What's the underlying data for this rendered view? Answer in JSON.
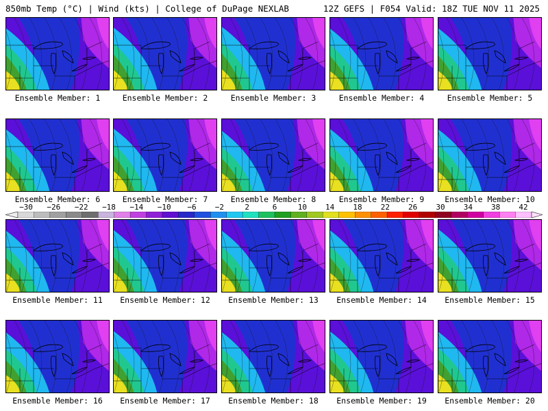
{
  "header": {
    "left": "850mb Temp (°C) | Wind (kts) | College of DuPage NEXLAB",
    "right": "12Z GEFS | F054 Valid: 18Z TUE NOV 11 2025"
  },
  "panels": [
    {
      "label": "Ensemble Member: 1",
      "warm": 0.55
    },
    {
      "label": "Ensemble Member: 2",
      "warm": 0.65
    },
    {
      "label": "Ensemble Member: 3",
      "warm": 0.75
    },
    {
      "label": "Ensemble Member: 4",
      "warm": 0.5
    },
    {
      "label": "Ensemble Member: 5",
      "warm": 0.55
    },
    {
      "label": "Ensemble Member: 6",
      "warm": 0.6
    },
    {
      "label": "Ensemble Member: 7",
      "warm": 0.7
    },
    {
      "label": "Ensemble Member: 8",
      "warm": 0.4
    },
    {
      "label": "Ensemble Member: 9",
      "warm": 0.65
    },
    {
      "label": "Ensemble Member: 10",
      "warm": 0.6
    },
    {
      "label": "Ensemble Member: 11",
      "warm": 0.5
    },
    {
      "label": "Ensemble Member: 12",
      "warm": 0.6
    },
    {
      "label": "Ensemble Member: 13",
      "warm": 0.5
    },
    {
      "label": "Ensemble Member: 14",
      "warm": 0.55
    },
    {
      "label": "Ensemble Member: 15",
      "warm": 0.7
    },
    {
      "label": "Ensemble Member: 16",
      "warm": 0.35
    },
    {
      "label": "Ensemble Member: 17",
      "warm": 0.55
    },
    {
      "label": "Ensemble Member: 18",
      "warm": 0.4
    },
    {
      "label": "Ensemble Member: 19",
      "warm": 0.5
    },
    {
      "label": "Ensemble Member: 20",
      "warm": 0.45
    }
  ],
  "colorbar": {
    "ticks": [
      "−30",
      "−26",
      "−22",
      "−18",
      "−14",
      "−10",
      "−6",
      "−2",
      "2",
      "6",
      "10",
      "14",
      "18",
      "22",
      "26",
      "30",
      "34",
      "38",
      "42"
    ],
    "colors": [
      "#d9d9d9",
      "#bdbdbd",
      "#a0a0a0",
      "#8a8a8a",
      "#6e6e6e",
      "#c8b4dc",
      "#e080e8",
      "#c040e0",
      "#9020d8",
      "#6010d0",
      "#2828c8",
      "#2050e0",
      "#2090f0",
      "#20c8f0",
      "#20e0c0",
      "#20c060",
      "#20a020",
      "#60b020",
      "#a0c820",
      "#e0e020",
      "#ffc000",
      "#ff9000",
      "#ff6000",
      "#ff2000",
      "#e00000",
      "#b00000",
      "#900020",
      "#b00060",
      "#d000a0",
      "#f040e0",
      "#ff80f0",
      "#ffc0ff"
    ]
  }
}
